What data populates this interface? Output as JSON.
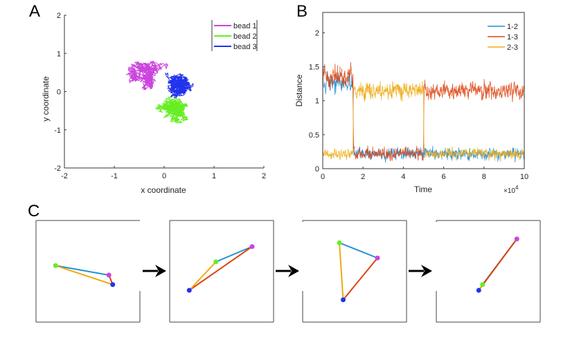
{
  "panel_labels": {
    "a": "A",
    "b": "B",
    "c": "C"
  },
  "chart_data": [
    {
      "type": "scatter",
      "panel": "A",
      "title": "",
      "xlabel": "x coordinate",
      "ylabel": "y coordinate",
      "xlim": [
        -2,
        2
      ],
      "ylim": [
        -2,
        2
      ],
      "xticks": [
        -2,
        -1,
        0,
        1,
        2
      ],
      "yticks": [
        -2,
        -1,
        0,
        1,
        2
      ],
      "grid": false,
      "legend_position": "top-right",
      "series": [
        {
          "name": "bead 1",
          "color": "#cc44dd",
          "center": [
            -0.35,
            0.45
          ],
          "spread": [
            0.45,
            0.25
          ]
        },
        {
          "name": "bead 2",
          "color": "#66ee22",
          "center": [
            0.2,
            -0.45
          ],
          "spread": [
            0.3,
            0.25
          ]
        },
        {
          "name": "bead 3",
          "color": "#2233ee",
          "center": [
            0.3,
            0.1
          ],
          "spread": [
            0.5,
            0.5
          ]
        }
      ]
    },
    {
      "type": "line",
      "panel": "B",
      "title": "",
      "xlabel": "Time",
      "ylabel": "Distance",
      "xlim": [
        0,
        10
      ],
      "ylim": [
        0,
        2.3
      ],
      "xticks": [
        0,
        2,
        4,
        6,
        8,
        10
      ],
      "yticks": [
        0,
        0.5,
        1,
        1.5,
        2
      ],
      "x_multiplier": "×10",
      "x_multiplier_exp": "4",
      "grid": false,
      "legend_position": "top-right",
      "series": [
        {
          "name": "1-2",
          "color": "#1f8fd8",
          "segments": [
            {
              "from": 0,
              "to": 1.5,
              "level": 1.25,
              "noise": 0.4
            },
            {
              "from": 1.5,
              "to": 5.0,
              "level": 0.22,
              "noise": 0.25
            },
            {
              "from": 5.0,
              "to": 10,
              "level": 0.22,
              "noise": 0.25
            }
          ]
        },
        {
          "name": "1-3",
          "color": "#dd4411",
          "segments": [
            {
              "from": 0,
              "to": 1.5,
              "level": 1.35,
              "noise": 0.45
            },
            {
              "from": 1.5,
              "to": 5.0,
              "level": 0.22,
              "noise": 0.25
            },
            {
              "from": 5.0,
              "to": 10,
              "level": 1.15,
              "noise": 0.35
            }
          ]
        },
        {
          "name": "2-3",
          "color": "#eeaa11",
          "segments": [
            {
              "from": 0,
              "to": 1.5,
              "level": 0.22,
              "noise": 0.22
            },
            {
              "from": 1.5,
              "to": 5.0,
              "level": 1.15,
              "noise": 0.35
            },
            {
              "from": 5.0,
              "to": 10,
              "level": 0.22,
              "noise": 0.22
            }
          ]
        }
      ]
    }
  ],
  "panel_c": {
    "bead_colors": {
      "bead1": "#cc44dd",
      "bead2": "#66ee22",
      "bead3": "#2233ee"
    },
    "edge_colors": {
      "e12": "#1f8fd8",
      "e13": "#dd4411",
      "e23": "#eeaa11"
    },
    "frames": [
      {
        "bead1": [
          0.55,
          -0.1
        ],
        "bead2": [
          -0.85,
          0.15
        ],
        "bead3": [
          0.65,
          -0.35
        ]
      },
      {
        "bead1": [
          0.8,
          0.65
        ],
        "bead2": [
          -0.15,
          0.25
        ],
        "bead3": [
          -0.85,
          -0.5
        ]
      },
      {
        "bead1": [
          0.6,
          0.35
        ],
        "bead2": [
          -0.4,
          0.75
        ],
        "bead3": [
          -0.3,
          -0.75
        ]
      },
      {
        "bead1": [
          0.75,
          0.85
        ],
        "bead2": [
          -0.15,
          -0.35
        ],
        "bead3": [
          -0.25,
          -0.5
        ]
      }
    ]
  }
}
